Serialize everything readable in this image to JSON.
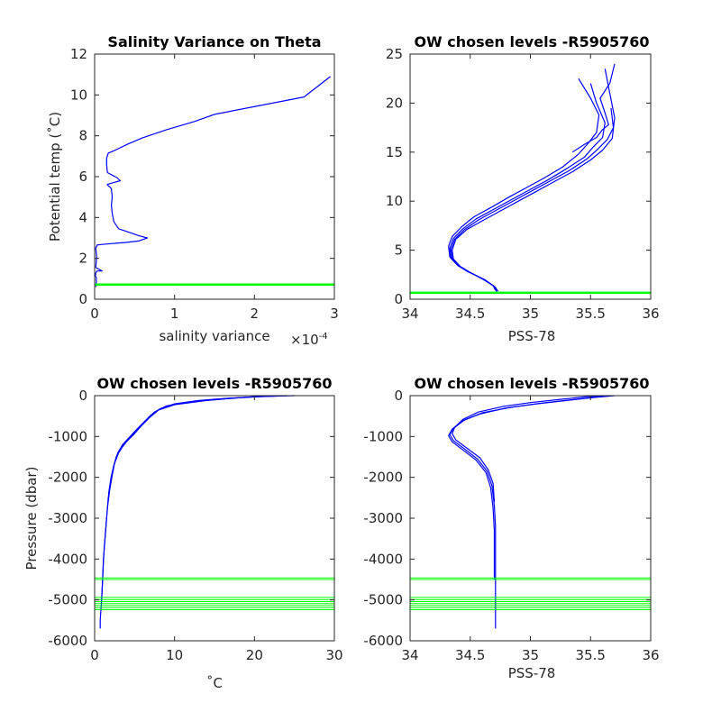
{
  "chart_data": [
    {
      "type": "line",
      "title": "Salinity Variance on Theta",
      "xlabel": "salinity variance",
      "x_exponent_label": "×10",
      "x_exponent_power": "-4",
      "ylabel": "Potential temp (˚C)",
      "xlim": [
        0,
        0.0003
      ],
      "ylim": [
        0,
        12
      ],
      "xticks": [
        0,
        0.0001,
        0.0002,
        0.0003
      ],
      "xtick_labels": [
        "0",
        "1",
        "2",
        "3"
      ],
      "yticks": [
        0,
        2,
        4,
        6,
        8,
        10,
        12
      ],
      "ytick_labels": [
        "0",
        "2",
        "4",
        "6",
        "8",
        "10",
        "12"
      ],
      "grid": false,
      "series": [
        {
          "color": "#0000ff",
          "x": [
            1.5e-06,
            2.2e-06,
            2e-06,
            2e-06,
            1e-06,
            1.5e-06,
            3e-06,
            9.5e-06,
            1.5e-06,
            2e-06,
            2.5e-06,
            2e-06,
            1.2e-06,
            2.5e-06,
            2.8e-06,
            3e-06,
            8e-06,
            2.1e-05,
            3.9e-05,
            5.5e-05,
            6.6e-05,
            5.6e-05,
            3e-05,
            2.4e-05,
            2.2e-05,
            2.1e-05,
            2.2e-05,
            2.1e-05,
            1.9e-05,
            1.8e-05,
            1.6e-05,
            1.6e-05,
            3.2e-05,
            2.8e-05,
            1.6e-05,
            1.5e-05,
            1.5e-05,
            1.7e-05,
            2.6e-05,
            4.2e-05,
            6e-05,
            9e-05,
            0.000125,
            0.00015,
            0.000262,
            0.000295
          ],
          "y": [
            0.6,
            0.75,
            0.95,
            1.05,
            1.15,
            1.3,
            1.38,
            1.38,
            1.55,
            1.85,
            2.05,
            2.3,
            2.5,
            2.58,
            2.62,
            2.65,
            2.68,
            2.72,
            2.78,
            2.85,
            3.0,
            3.1,
            3.45,
            3.8,
            4.2,
            4.6,
            5.0,
            5.4,
            5.5,
            5.52,
            5.6,
            5.62,
            5.8,
            5.95,
            6.2,
            6.6,
            6.9,
            7.15,
            7.3,
            7.6,
            7.9,
            8.3,
            8.7,
            9.05,
            9.9,
            10.9
          ]
        }
      ],
      "hlines": [
        {
          "y": 0.72,
          "color": "#00ff00"
        }
      ]
    },
    {
      "type": "line",
      "title": "OW chosen levels -R5905760",
      "xlabel": "PSS-78",
      "ylabel": "",
      "xlim": [
        34,
        36
      ],
      "ylim": [
        0,
        25
      ],
      "xticks": [
        34,
        34.5,
        35,
        35.5,
        36
      ],
      "xtick_labels": [
        "34",
        "34.5",
        "35",
        "35.5",
        "36"
      ],
      "yticks": [
        0,
        5,
        10,
        15,
        20,
        25
      ],
      "ytick_labels": [
        "0",
        "5",
        "10",
        "15",
        "20",
        "25"
      ],
      "grid": false,
      "series": [
        {
          "color": "#0000ff",
          "x": [
            34.72,
            34.7,
            34.62,
            34.48,
            34.4,
            34.34,
            34.33,
            34.36,
            34.44,
            34.55,
            34.7,
            34.85,
            35.0,
            35.15,
            35.3,
            35.45,
            35.52,
            35.6,
            35.62,
            35.55,
            35.5
          ],
          "y": [
            0.8,
            1.3,
            2.0,
            2.8,
            3.4,
            4.2,
            5.2,
            6.2,
            7.2,
            8.2,
            9.2,
            10.2,
            11.2,
            12.2,
            13.3,
            14.5,
            15.5,
            16.5,
            18.0,
            20.0,
            22.0
          ]
        },
        {
          "color": "#0000ff",
          "x": [
            34.73,
            34.71,
            34.63,
            34.5,
            34.42,
            34.36,
            34.35,
            34.38,
            34.47,
            34.6,
            34.75,
            34.9,
            35.05,
            35.2,
            35.35,
            35.5,
            35.6,
            35.68,
            35.7,
            35.66,
            35.62
          ],
          "y": [
            0.8,
            1.2,
            1.9,
            2.7,
            3.3,
            4.1,
            5.0,
            6.1,
            7.1,
            8.0,
            9.0,
            10.0,
            11.0,
            12.0,
            13.0,
            14.2,
            15.2,
            16.4,
            18.5,
            21.0,
            23.5
          ]
        },
        {
          "color": "#0000ff",
          "x": [
            34.71,
            34.69,
            34.6,
            34.47,
            34.39,
            34.33,
            34.32,
            34.35,
            34.43,
            34.53,
            34.68,
            34.82,
            34.97,
            35.12,
            35.27,
            35.4,
            35.48,
            35.55,
            35.57,
            35.5,
            35.4
          ],
          "y": [
            0.9,
            1.4,
            2.1,
            2.9,
            3.5,
            4.3,
            5.4,
            6.4,
            7.4,
            8.4,
            9.4,
            10.4,
            11.4,
            12.4,
            13.5,
            14.8,
            15.9,
            17.0,
            18.8,
            20.5,
            22.5
          ]
        },
        {
          "color": "#0000ff",
          "x": [
            34.72,
            34.7,
            34.61,
            34.49,
            34.41,
            34.35,
            34.34,
            34.37,
            34.45,
            34.57,
            34.72,
            34.87,
            35.02,
            35.17,
            35.32,
            35.47,
            35.56,
            35.64,
            35.69,
            35.67
          ],
          "y": [
            0.8,
            1.3,
            2.0,
            2.8,
            3.4,
            4.2,
            5.1,
            6.1,
            7.1,
            8.1,
            9.1,
            10.1,
            11.1,
            12.1,
            13.1,
            14.3,
            15.3,
            16.3,
            17.5,
            19.5
          ]
        },
        {
          "color": "#0000ff",
          "x": [
            35.35,
            35.45,
            35.55,
            35.6,
            35.65,
            35.62,
            35.58,
            35.66,
            35.7
          ],
          "y": [
            15.0,
            15.8,
            16.5,
            17.3,
            17.8,
            19.0,
            20.5,
            22.0,
            24.0
          ]
        }
      ],
      "hlines": [
        {
          "y": 0.65,
          "color": "#00ff00"
        }
      ]
    },
    {
      "type": "line",
      "title": "OW chosen levels -R5905760",
      "xlabel": "˚C",
      "ylabel": "Pressure (dbar)",
      "xlim": [
        0,
        30
      ],
      "ylim": [
        -6000,
        0
      ],
      "xticks": [
        0,
        10,
        20,
        30
      ],
      "xtick_labels": [
        "0",
        "10",
        "20",
        "30"
      ],
      "yticks": [
        -6000,
        -5000,
        -4000,
        -3000,
        -2000,
        -1000,
        0
      ],
      "ytick_labels": [
        "-6000",
        "-5000",
        "-4000",
        "-3000",
        "-2000",
        "-1000",
        "0"
      ],
      "grid": false,
      "series": [
        {
          "color": "#0000ff",
          "x": [
            24.0,
            20.0,
            16.0,
            12.0,
            9.0,
            7.5,
            6.5,
            5.5,
            4.5,
            3.8,
            3.2,
            2.7,
            2.3,
            2.0,
            1.7,
            1.5,
            1.3,
            1.1,
            1.0,
            0.9,
            0.8,
            0.7,
            0.7
          ],
          "y": [
            0,
            -30,
            -80,
            -150,
            -250,
            -400,
            -600,
            -800,
            -1000,
            -1150,
            -1300,
            -1500,
            -1800,
            -2100,
            -2500,
            -3000,
            -3500,
            -4000,
            -4500,
            -4900,
            -5200,
            -5500,
            -5700
          ]
        },
        {
          "color": "#0000ff",
          "x": [
            22.0,
            18.0,
            14.0,
            10.0,
            8.0,
            6.8,
            5.8,
            4.9,
            4.1,
            3.5,
            3.0,
            2.5,
            2.2,
            1.9,
            1.6,
            1.4,
            1.2,
            1.05,
            0.95,
            0.85
          ],
          "y": [
            0,
            -50,
            -120,
            -220,
            -350,
            -550,
            -750,
            -950,
            -1100,
            -1250,
            -1400,
            -1650,
            -1950,
            -2300,
            -2750,
            -3250,
            -3750,
            -4250,
            -4700,
            -5100
          ]
        },
        {
          "color": "#0000ff",
          "x": [
            25.0,
            21.0,
            17.0,
            13.0,
            10.0,
            8.2,
            7.0,
            6.0,
            5.0,
            4.2,
            3.5,
            2.9,
            2.4,
            2.05,
            1.75
          ],
          "y": [
            0,
            -20,
            -60,
            -120,
            -200,
            -320,
            -480,
            -680,
            -880,
            -1050,
            -1200,
            -1400,
            -1700,
            -2000,
            -2400
          ]
        }
      ],
      "hlines": [
        {
          "y": -4460,
          "color": "#00ff00"
        },
        {
          "y": -4500,
          "color": "#00ff00"
        },
        {
          "y": -4940,
          "color": "#00ff00"
        },
        {
          "y": -4990,
          "color": "#00ff00"
        },
        {
          "y": -5040,
          "color": "#00ff00"
        },
        {
          "y": -5090,
          "color": "#00ff00"
        },
        {
          "y": -5140,
          "color": "#00ff00"
        },
        {
          "y": -5190,
          "color": "#00ff00"
        },
        {
          "y": -5240,
          "color": "#00ff00"
        }
      ]
    },
    {
      "type": "line",
      "title": "OW chosen levels -R5905760",
      "xlabel": "PSS-78",
      "ylabel": "",
      "xlim": [
        34,
        36
      ],
      "ylim": [
        -6000,
        0
      ],
      "xticks": [
        34,
        34.5,
        35,
        35.5,
        36
      ],
      "xtick_labels": [
        "34",
        "34.5",
        "35",
        "35.5",
        "36"
      ],
      "yticks": [
        -6000,
        -5000,
        -4000,
        -3000,
        -2000,
        -1000,
        0
      ],
      "ytick_labels": [
        "-6000",
        "-5000",
        "-4000",
        "-3000",
        "-2000",
        "-1000",
        "0"
      ],
      "grid": false,
      "series": [
        {
          "color": "#0000ff",
          "x": [
            35.7,
            35.55,
            35.35,
            35.1,
            34.85,
            34.6,
            34.45,
            34.36,
            34.33,
            34.36,
            34.45,
            34.56,
            34.64,
            34.68,
            34.7,
            34.71,
            34.71,
            34.71,
            34.71,
            34.71
          ],
          "y": [
            0,
            -40,
            -100,
            -180,
            -280,
            -420,
            -600,
            -800,
            -950,
            -1100,
            -1300,
            -1550,
            -1850,
            -2200,
            -2700,
            -3200,
            -3700,
            -4300,
            -5000,
            -5700
          ]
        },
        {
          "color": "#0000ff",
          "x": [
            35.65,
            35.5,
            35.3,
            35.05,
            34.8,
            34.58,
            34.43,
            34.35,
            34.32,
            34.35,
            34.44,
            34.55,
            34.63,
            34.67,
            34.69,
            34.7,
            34.7,
            34.7
          ],
          "y": [
            0,
            -50,
            -120,
            -200,
            -300,
            -450,
            -620,
            -820,
            -980,
            -1130,
            -1330,
            -1580,
            -1880,
            -2250,
            -2750,
            -3300,
            -3900,
            -4500
          ]
        },
        {
          "color": "#0000ff",
          "x": [
            35.6,
            35.45,
            35.25,
            35.0,
            34.78,
            34.57,
            34.44,
            34.37,
            34.35,
            34.38,
            34.47,
            34.58,
            34.65,
            34.69,
            34.7
          ],
          "y": [
            0,
            -30,
            -90,
            -170,
            -260,
            -400,
            -580,
            -780,
            -930,
            -1080,
            -1280,
            -1520,
            -1820,
            -2150,
            -2600
          ]
        }
      ],
      "hlines": [
        {
          "y": -4460,
          "color": "#00ff00"
        },
        {
          "y": -4500,
          "color": "#00ff00"
        },
        {
          "y": -4940,
          "color": "#00ff00"
        },
        {
          "y": -4990,
          "color": "#00ff00"
        },
        {
          "y": -5040,
          "color": "#00ff00"
        },
        {
          "y": -5090,
          "color": "#00ff00"
        },
        {
          "y": -5140,
          "color": "#00ff00"
        },
        {
          "y": -5190,
          "color": "#00ff00"
        },
        {
          "y": -5240,
          "color": "#00ff00"
        }
      ]
    }
  ]
}
